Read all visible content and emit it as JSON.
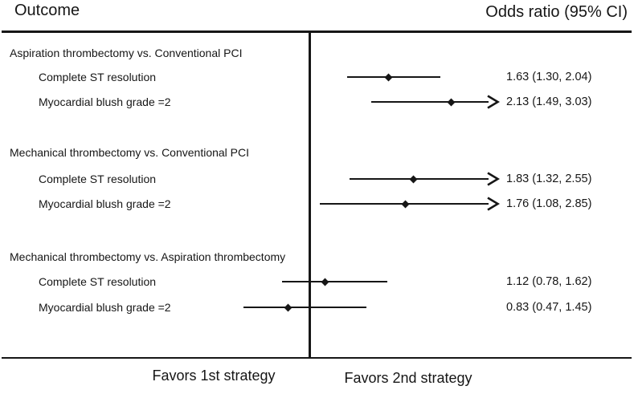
{
  "chart_data": {
    "type": "forest",
    "effect_measure": "Odds ratio",
    "scale": "linear",
    "null_value": 1.0,
    "clip_upper": 2.5,
    "clip_note": "confidence intervals extending past right edge drawn as arrows",
    "column_headers": [
      "Outcome",
      "Odds ratio (95% CI)"
    ],
    "footer_labels": [
      "Favors 1st strategy",
      "Favors 2nd strategy"
    ],
    "groups": [
      {
        "label": "Aspiration thrombectomy vs. Conventional PCI",
        "rows": [
          {
            "label": "Complete ST resolution",
            "estimate": 1.63,
            "ci_lower": 1.3,
            "ci_upper": 2.04,
            "display": "1.63 (1.30, 2.04)"
          },
          {
            "label": "Myocardial blush grade =2",
            "estimate": 2.13,
            "ci_lower": 1.49,
            "ci_upper": 3.03,
            "display": "2.13 (1.49, 3.03)"
          }
        ]
      },
      {
        "label": "Mechanical thrombectomy vs. Conventional PCI",
        "rows": [
          {
            "label": "Complete ST resolution",
            "estimate": 1.83,
            "ci_lower": 1.32,
            "ci_upper": 2.55,
            "display": "1.83 (1.32, 2.55)"
          },
          {
            "label": "Myocardial blush grade =2",
            "estimate": 1.76,
            "ci_lower": 1.08,
            "ci_upper": 2.85,
            "display": "1.76 (1.08, 2.85)"
          }
        ]
      },
      {
        "label": "Mechanical thrombectomy vs. Aspiration thrombectomy",
        "rows": [
          {
            "label": "Complete ST resolution",
            "estimate": 1.12,
            "ci_lower": 0.78,
            "ci_upper": 1.62,
            "display": "1.12 (0.78, 1.62)"
          },
          {
            "label": "Myocardial blush grade =2",
            "estimate": 0.83,
            "ci_lower": 0.47,
            "ci_upper": 1.45,
            "display": "0.83 (0.47, 1.45)"
          }
        ]
      }
    ]
  },
  "colors": {
    "foreground": "#161616",
    "background": "#ffffff"
  }
}
